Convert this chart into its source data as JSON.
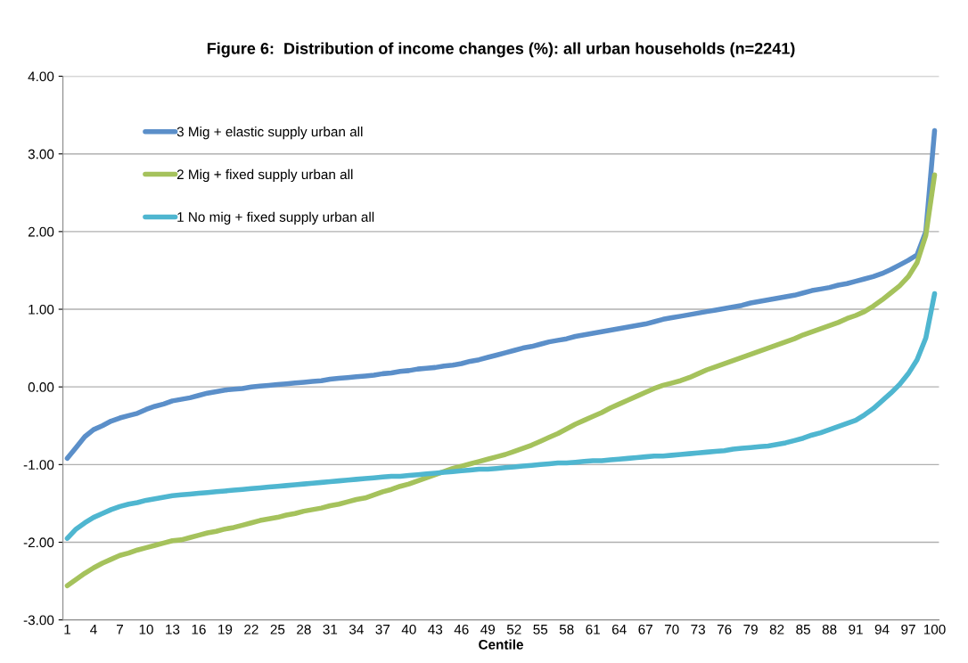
{
  "chart_data": {
    "type": "line",
    "title": "Figure 6:  Distribution of income changes (%): all urban households (n=2241)",
    "xlabel": "Centile",
    "categories": [
      "1",
      null,
      null,
      "4",
      null,
      null,
      "7",
      null,
      null,
      "10",
      null,
      null,
      "13",
      null,
      null,
      "16",
      null,
      null,
      "19",
      null,
      null,
      "22",
      null,
      null,
      "25",
      null,
      null,
      "28",
      null,
      null,
      "31",
      null,
      null,
      "34",
      null,
      null,
      "37",
      null,
      null,
      "40",
      null,
      null,
      "43",
      null,
      null,
      "46",
      null,
      null,
      "49",
      null,
      null,
      "52",
      null,
      null,
      "55",
      null,
      null,
      "58",
      null,
      null,
      "61",
      null,
      null,
      "64",
      null,
      null,
      "67",
      null,
      null,
      "70",
      null,
      null,
      "73",
      null,
      null,
      "76",
      null,
      null,
      "79",
      null,
      null,
      "82",
      null,
      null,
      "85",
      null,
      null,
      "88",
      null,
      null,
      "91",
      null,
      null,
      "94",
      null,
      null,
      "97",
      null,
      null,
      "100"
    ],
    "series": [
      {
        "name": "3 Mig + elastic supply urban all",
        "color": "#5b8fc9",
        "values": [
          -0.92,
          -0.78,
          -0.64,
          -0.55,
          -0.5,
          -0.44,
          -0.4,
          -0.37,
          -0.34,
          -0.29,
          -0.25,
          -0.22,
          -0.18,
          -0.16,
          -0.14,
          -0.11,
          -0.08,
          -0.06,
          -0.04,
          -0.03,
          -0.02,
          0.0,
          0.01,
          0.02,
          0.03,
          0.04,
          0.05,
          0.06,
          0.07,
          0.08,
          0.1,
          0.11,
          0.12,
          0.13,
          0.14,
          0.15,
          0.17,
          0.18,
          0.2,
          0.21,
          0.23,
          0.24,
          0.25,
          0.27,
          0.28,
          0.3,
          0.33,
          0.35,
          0.38,
          0.41,
          0.44,
          0.47,
          0.5,
          0.52,
          0.55,
          0.58,
          0.6,
          0.62,
          0.65,
          0.67,
          0.69,
          0.71,
          0.73,
          0.75,
          0.77,
          0.79,
          0.81,
          0.84,
          0.87,
          0.89,
          0.91,
          0.93,
          0.95,
          0.97,
          0.99,
          1.01,
          1.03,
          1.05,
          1.08,
          1.1,
          1.12,
          1.14,
          1.16,
          1.18,
          1.21,
          1.24,
          1.26,
          1.28,
          1.31,
          1.33,
          1.36,
          1.39,
          1.42,
          1.46,
          1.51,
          1.57,
          1.63,
          1.7,
          2.0,
          3.3
        ]
      },
      {
        "name": "2 Mig + fixed supply urban all",
        "color": "#a5c25c",
        "values": [
          -2.56,
          -2.48,
          -2.4,
          -2.33,
          -2.27,
          -2.22,
          -2.17,
          -2.14,
          -2.1,
          -2.07,
          -2.04,
          -2.01,
          -1.98,
          -1.97,
          -1.94,
          -1.91,
          -1.88,
          -1.86,
          -1.83,
          -1.81,
          -1.78,
          -1.75,
          -1.72,
          -1.7,
          -1.68,
          -1.65,
          -1.63,
          -1.6,
          -1.58,
          -1.56,
          -1.53,
          -1.51,
          -1.48,
          -1.45,
          -1.43,
          -1.39,
          -1.35,
          -1.32,
          -1.28,
          -1.25,
          -1.21,
          -1.17,
          -1.13,
          -1.09,
          -1.05,
          -1.02,
          -0.99,
          -0.96,
          -0.93,
          -0.9,
          -0.87,
          -0.83,
          -0.79,
          -0.75,
          -0.7,
          -0.65,
          -0.6,
          -0.54,
          -0.48,
          -0.43,
          -0.38,
          -0.33,
          -0.27,
          -0.22,
          -0.17,
          -0.12,
          -0.07,
          -0.02,
          0.02,
          0.05,
          0.08,
          0.12,
          0.17,
          0.22,
          0.26,
          0.3,
          0.34,
          0.38,
          0.42,
          0.46,
          0.5,
          0.54,
          0.58,
          0.62,
          0.67,
          0.71,
          0.75,
          0.79,
          0.83,
          0.88,
          0.92,
          0.97,
          1.04,
          1.12,
          1.21,
          1.3,
          1.42,
          1.6,
          1.95,
          2.73
        ]
      },
      {
        "name": "1 No mig + fixed supply urban all",
        "color": "#4fb6d0",
        "values": [
          -1.95,
          -1.83,
          -1.75,
          -1.68,
          -1.63,
          -1.58,
          -1.54,
          -1.51,
          -1.49,
          -1.46,
          -1.44,
          -1.42,
          -1.4,
          -1.39,
          -1.38,
          -1.37,
          -1.36,
          -1.35,
          -1.34,
          -1.33,
          -1.32,
          -1.31,
          -1.3,
          -1.29,
          -1.28,
          -1.27,
          -1.26,
          -1.25,
          -1.24,
          -1.23,
          -1.22,
          -1.21,
          -1.2,
          -1.19,
          -1.18,
          -1.17,
          -1.16,
          -1.15,
          -1.15,
          -1.14,
          -1.13,
          -1.12,
          -1.11,
          -1.1,
          -1.09,
          -1.08,
          -1.07,
          -1.06,
          -1.06,
          -1.05,
          -1.04,
          -1.03,
          -1.02,
          -1.01,
          -1.0,
          -0.99,
          -0.98,
          -0.98,
          -0.97,
          -0.96,
          -0.95,
          -0.95,
          -0.94,
          -0.93,
          -0.92,
          -0.91,
          -0.9,
          -0.89,
          -0.89,
          -0.88,
          -0.87,
          -0.86,
          -0.85,
          -0.84,
          -0.83,
          -0.82,
          -0.8,
          -0.79,
          -0.78,
          -0.77,
          -0.76,
          -0.74,
          -0.72,
          -0.69,
          -0.66,
          -0.62,
          -0.59,
          -0.55,
          -0.51,
          -0.47,
          -0.43,
          -0.36,
          -0.28,
          -0.18,
          -0.08,
          0.03,
          0.17,
          0.35,
          0.63,
          1.2
        ]
      }
    ],
    "ylim": [
      -3,
      4
    ],
    "yticks": [
      {
        "value": -3,
        "label": "-3.00"
      },
      {
        "value": -2,
        "label": "-2.00"
      },
      {
        "value": -1,
        "label": "-1.00"
      },
      {
        "value": 0,
        "label": "0.00"
      },
      {
        "value": 1,
        "label": "1.00"
      },
      {
        "value": 2,
        "label": "2.00"
      },
      {
        "value": 3,
        "label": "3.00"
      },
      {
        "value": 4,
        "label": "4.00"
      }
    ],
    "grid": "y",
    "legend": "top left",
    "line_style": "solid",
    "marker": "none"
  }
}
